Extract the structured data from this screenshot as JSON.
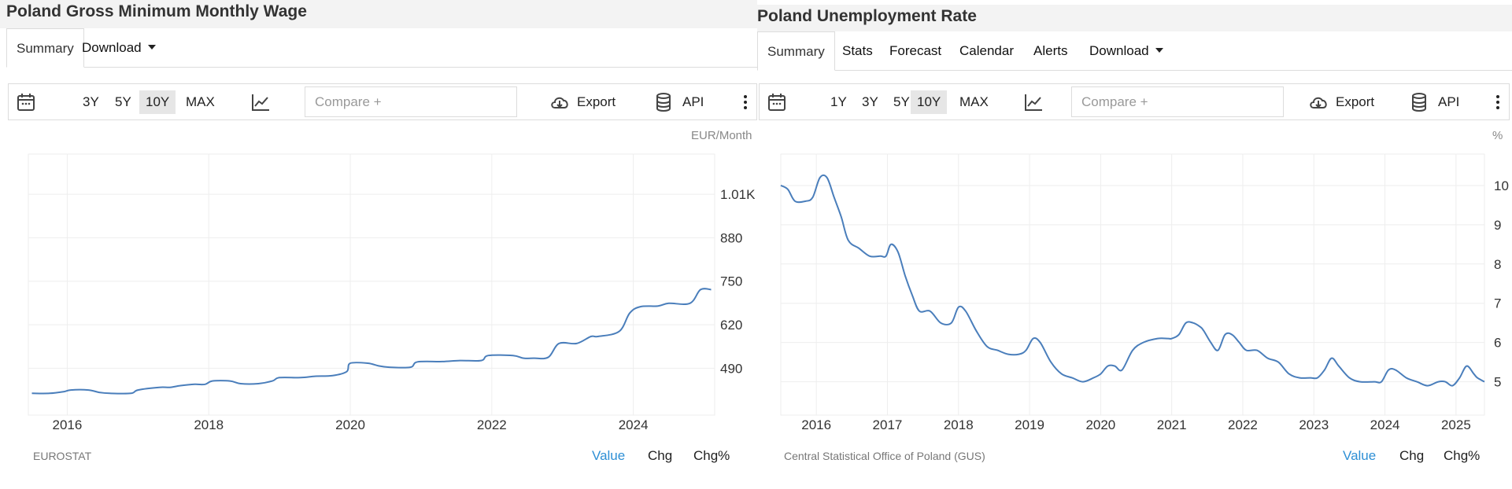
{
  "left": {
    "title": "Poland Gross Minimum Monthly Wage",
    "tabs": [
      {
        "label": "Summary"
      },
      {
        "label": "Download"
      }
    ],
    "toolbar": {
      "ranges": [
        "3Y",
        "5Y",
        "10Y",
        "MAX"
      ],
      "active_range": "10Y",
      "compare_placeholder": "Compare +",
      "export_label": "Export",
      "api_label": "API"
    },
    "unit": "EUR/Month",
    "source": "EUROSTAT",
    "modes": [
      "Value",
      "Chg",
      "Chg%"
    ],
    "active_mode": "Value"
  },
  "right": {
    "title": "Poland Unemployment Rate",
    "tabs": [
      {
        "label": "Summary"
      },
      {
        "label": "Stats"
      },
      {
        "label": "Forecast"
      },
      {
        "label": "Calendar"
      },
      {
        "label": "Alerts"
      },
      {
        "label": "Download"
      }
    ],
    "toolbar": {
      "ranges": [
        "1Y",
        "3Y",
        "5Y",
        "10Y",
        "MAX"
      ],
      "active_range": "10Y",
      "compare_placeholder": "Compare +",
      "export_label": "Export",
      "api_label": "API"
    },
    "unit": "%",
    "source": "Central Statistical Office of Poland (GUS)",
    "modes": [
      "Value",
      "Chg",
      "Chg%"
    ],
    "active_mode": "Value"
  },
  "colors": {
    "line": "#4a7ebb",
    "accent": "#2d8fd5",
    "active_range_bg": "#e6e6e6",
    "grid": "#eeeeee"
  },
  "icons": [
    "calendar-icon",
    "line-chart-icon",
    "cloud-download-icon",
    "database-icon",
    "more-vertical-icon"
  ],
  "chart_data": [
    {
      "type": "line",
      "title": "Poland Gross Minimum Monthly Wage",
      "unit": "EUR/Month",
      "xlabel": "",
      "ylabel": "",
      "xlim": [
        2015.45,
        2025.15
      ],
      "ylim": [
        350,
        1130
      ],
      "x_ticks": [
        2016,
        2018,
        2020,
        2022,
        2024
      ],
      "y_ticks": [
        490,
        620,
        750,
        880,
        1010
      ],
      "y_tick_labels": [
        "490",
        "620",
        "750",
        "880",
        "1.01K"
      ],
      "grid": true,
      "series": [
        {
          "x": [
            2015.5,
            2015.75,
            2015.95,
            2016.05,
            2016.3,
            2016.45,
            2016.6,
            2016.9,
            2017.0,
            2017.3,
            2017.45,
            2017.6,
            2017.8,
            2017.95,
            2018.05,
            2018.3,
            2018.45,
            2018.7,
            2018.9,
            2019.0,
            2019.3,
            2019.5,
            2019.75,
            2019.95,
            2020.0,
            2020.25,
            2020.4,
            2020.55,
            2020.85,
            2020.95,
            2021.3,
            2021.55,
            2021.85,
            2021.95,
            2022.3,
            2022.45,
            2022.6,
            2022.8,
            2022.95,
            2023.2,
            2023.4,
            2023.5,
            2023.8,
            2023.95,
            2024.1,
            2024.35,
            2024.5,
            2024.8,
            2024.95,
            2025.1
          ],
          "y": [
            415,
            415,
            420,
            425,
            425,
            418,
            415,
            415,
            425,
            433,
            433,
            438,
            442,
            442,
            452,
            452,
            444,
            444,
            452,
            462,
            462,
            466,
            468,
            480,
            505,
            505,
            497,
            493,
            493,
            509,
            510,
            513,
            513,
            528,
            528,
            520,
            520,
            523,
            564,
            564,
            585,
            585,
            600,
            655,
            674,
            676,
            684,
            684,
            725,
            725
          ]
        }
      ]
    },
    {
      "type": "line",
      "title": "Poland Unemployment Rate",
      "unit": "%",
      "xlabel": "",
      "ylabel": "",
      "xlim": [
        2015.5,
        2025.4
      ],
      "ylim": [
        4.15,
        10.8
      ],
      "x_ticks": [
        2016,
        2017,
        2018,
        2019,
        2020,
        2021,
        2022,
        2023,
        2024,
        2025
      ],
      "y_ticks": [
        5,
        6,
        7,
        8,
        9,
        10
      ],
      "grid": true,
      "series": [
        {
          "x": [
            2015.5,
            2015.6,
            2015.7,
            2015.85,
            2015.95,
            2016.05,
            2016.15,
            2016.25,
            2016.35,
            2016.45,
            2016.6,
            2016.75,
            2016.9,
            2016.98,
            2017.05,
            2017.15,
            2017.25,
            2017.35,
            2017.45,
            2017.6,
            2017.75,
            2017.9,
            2018.0,
            2018.1,
            2018.25,
            2018.4,
            2018.55,
            2018.7,
            2018.85,
            2018.95,
            2019.05,
            2019.15,
            2019.3,
            2019.45,
            2019.6,
            2019.75,
            2019.9,
            2020.0,
            2020.1,
            2020.2,
            2020.3,
            2020.45,
            2020.6,
            2020.8,
            2020.95,
            2021.0,
            2021.1,
            2021.2,
            2021.3,
            2021.4,
            2021.45,
            2021.55,
            2021.65,
            2021.75,
            2021.85,
            2021.95,
            2022.05,
            2022.2,
            2022.35,
            2022.5,
            2022.65,
            2022.8,
            2022.95,
            2023.05,
            2023.15,
            2023.25,
            2023.35,
            2023.5,
            2023.65,
            2023.85,
            2023.95,
            2024.05,
            2024.15,
            2024.3,
            2024.45,
            2024.6,
            2024.75,
            2024.85,
            2024.95,
            2025.05,
            2025.15,
            2025.25,
            2025.3,
            2025.4
          ],
          "y": [
            10.0,
            9.9,
            9.6,
            9.6,
            9.7,
            10.2,
            10.2,
            9.7,
            9.2,
            8.6,
            8.4,
            8.2,
            8.2,
            8.2,
            8.5,
            8.3,
            7.7,
            7.2,
            6.8,
            6.8,
            6.5,
            6.5,
            6.9,
            6.8,
            6.3,
            5.9,
            5.8,
            5.7,
            5.7,
            5.8,
            6.1,
            6.0,
            5.5,
            5.2,
            5.1,
            5.0,
            5.1,
            5.2,
            5.4,
            5.4,
            5.3,
            5.8,
            6.0,
            6.1,
            6.1,
            6.1,
            6.2,
            6.5,
            6.5,
            6.4,
            6.3,
            6.0,
            5.8,
            6.2,
            6.2,
            6.0,
            5.8,
            5.8,
            5.6,
            5.5,
            5.2,
            5.1,
            5.1,
            5.1,
            5.3,
            5.6,
            5.4,
            5.1,
            5.0,
            5.0,
            5.0,
            5.3,
            5.3,
            5.1,
            5.0,
            4.9,
            5.0,
            5.0,
            4.9,
            5.1,
            5.4,
            5.2,
            5.1,
            5.0
          ]
        }
      ]
    }
  ]
}
